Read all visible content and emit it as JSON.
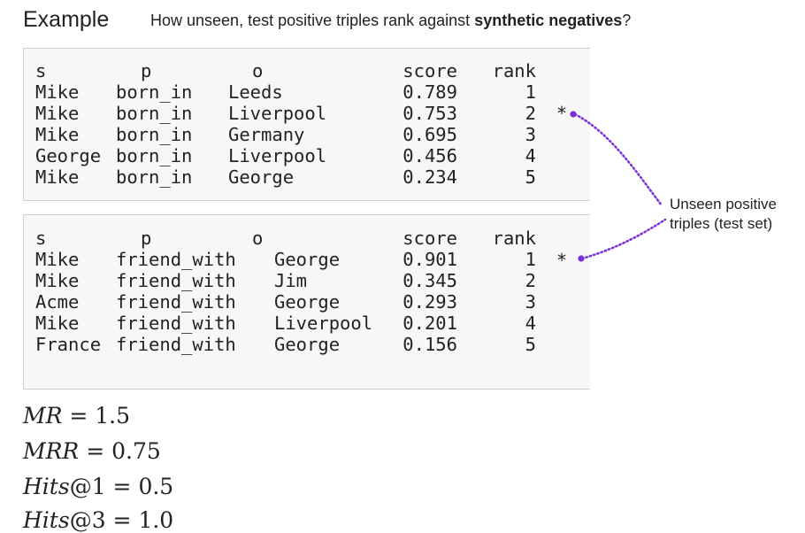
{
  "header": {
    "title": "Example",
    "question_prefix": "How unseen, test positive triples rank against ",
    "question_bold": "synthetic negatives",
    "question_suffix": "?"
  },
  "table1": {
    "columns": [
      "s",
      "p",
      "o",
      "score",
      "rank"
    ],
    "rows": [
      {
        "s": "Mike",
        "p": "born_in",
        "o": "Leeds",
        "score": "0.789",
        "rank": "1"
      },
      {
        "s": "Mike",
        "p": "born_in",
        "o": "Liverpool",
        "score": "0.753",
        "rank": "2"
      },
      {
        "s": "Mike",
        "p": "born_in",
        "o": "Germany",
        "score": "0.695",
        "rank": "3"
      },
      {
        "s": "George",
        "p": "born_in",
        "o": "Liverpool",
        "score": "0.456",
        "rank": "4"
      },
      {
        "s": "Mike",
        "p": "born_in",
        "o": "George",
        "score": "0.234",
        "rank": "5"
      }
    ],
    "marker": "*"
  },
  "table2": {
    "columns": [
      "s",
      "p",
      "o",
      "score",
      "rank"
    ],
    "rows": [
      {
        "s": "Mike",
        "p": "friend_with",
        "o": "George",
        "score": "0.901",
        "rank": "1"
      },
      {
        "s": "Mike",
        "p": "friend_with",
        "o": "Jim",
        "score": "0.345",
        "rank": "2"
      },
      {
        "s": "Acme",
        "p": "friend_with",
        "o": "George",
        "score": "0.293",
        "rank": "3"
      },
      {
        "s": "Mike",
        "p": "friend_with",
        "o": "Liverpool",
        "score": "0.201",
        "rank": "4"
      },
      {
        "s": "France",
        "p": "friend_with",
        "o": "George",
        "score": "0.156",
        "rank": "5"
      }
    ],
    "marker": "*"
  },
  "callout": {
    "line1": "Unseen positive",
    "line2": "triples (test set)",
    "color": "#7b2fd8"
  },
  "metrics": {
    "mr": {
      "name": "MR",
      "value": "1.5"
    },
    "mrr": {
      "name": "MRR",
      "value": "0.75"
    },
    "hits1": {
      "name": "Hits",
      "k": "@1",
      "value": "0.5"
    },
    "hits3": {
      "name": "Hits",
      "k": "@3",
      "value": "1.0"
    }
  }
}
